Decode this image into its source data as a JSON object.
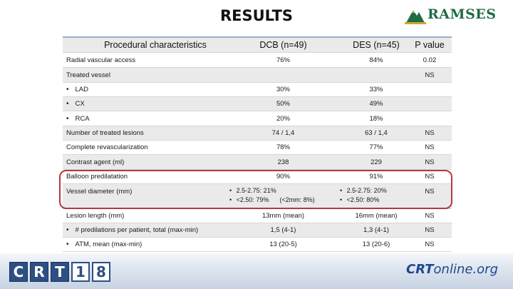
{
  "title": "RESULTS",
  "logo_text": "RAMSES",
  "header": {
    "label": "Procedural characteristics",
    "dcb": "DCB (n=49)",
    "des": "DES (n=45)",
    "pv": "P value"
  },
  "rows": [
    {
      "label": "Radial vascular access",
      "dcb": "76%",
      "des": "84%",
      "pv": "0.02"
    },
    {
      "label": "Treated vessel",
      "dcb": "",
      "des": "",
      "pv": "NS"
    },
    {
      "label": "LAD",
      "dcb": "30%",
      "des": "33%",
      "pv": ""
    },
    {
      "label": "CX",
      "dcb": "50%",
      "des": "49%",
      "pv": ""
    },
    {
      "label": "RCA",
      "dcb": "20%",
      "des": "18%",
      "pv": ""
    },
    {
      "label": "Number of treated lesions",
      "dcb": "74 / 1,4",
      "des": "63 / 1,4",
      "pv": "NS"
    },
    {
      "label": "Complete revascularization",
      "dcb": "78%",
      "des": "77%",
      "pv": "NS"
    },
    {
      "label": "Contrast agent (ml)",
      "dcb": "238",
      "des": "229",
      "pv": "NS"
    },
    {
      "label": "Balloon predilatation",
      "dcb": "90%",
      "des": "91%",
      "pv": "NS"
    },
    {
      "label": "Vessel diameter (mm)",
      "dcb_bullets": [
        "2.5-2.75: 21%",
        "<2.50: 79%      (<2mm: 8%)"
      ],
      "des_bullets": [
        "2.5-2.75: 20%",
        "<2.50: 80%"
      ],
      "pv": "NS"
    },
    {
      "label": "Lesion length (mm)",
      "dcb": "13mm (mean)",
      "des": "16mm (mean)",
      "pv": "NS"
    },
    {
      "label": "# predilations per patient, total (max-min)",
      "dcb": "1,5 (4-1)",
      "des": "1,3 (4-1)",
      "pv": "NS"
    },
    {
      "label": "ATM, mean (max-min)",
      "dcb": "13 (20-5)",
      "des": "13 (20-6)",
      "pv": "NS"
    }
  ],
  "footer": {
    "crt_letters": [
      "C",
      "R",
      "T",
      "1",
      "8"
    ],
    "crt_online_a": "CRT",
    "crt_online_b": "online.org"
  }
}
